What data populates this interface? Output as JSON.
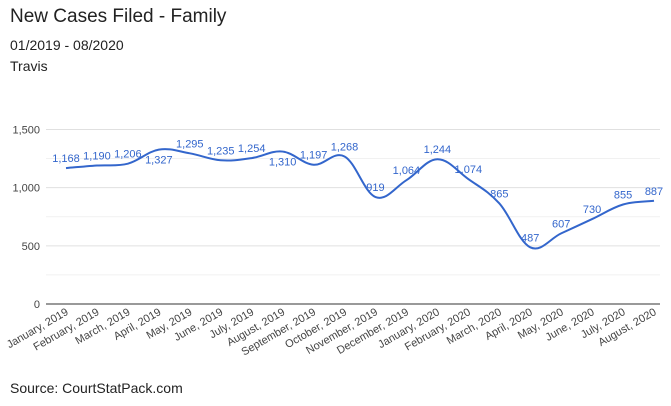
{
  "title": "New Cases Filed - Family",
  "subtitle": "01/2019 - 08/2020",
  "subtitle2": "Travis",
  "source": "Source: CourtStatPack.com",
  "colors": {
    "line": "#3366cc",
    "grid": "#e0e0e0",
    "axis": "#333333",
    "text": "#222222"
  },
  "chart_data": {
    "type": "line",
    "categories": [
      "January, 2019",
      "February, 2019",
      "March, 2019",
      "April, 2019",
      "May, 2019",
      "June, 2019",
      "July, 2019",
      "August, 2019",
      "September, 2019",
      "October, 2019",
      "November, 2019",
      "December, 2019",
      "January, 2020",
      "February, 2020",
      "March, 2020",
      "April, 2020",
      "May, 2020",
      "June, 2020",
      "July, 2020",
      "August, 2020"
    ],
    "values": [
      1168,
      1190,
      1206,
      1327,
      1295,
      1235,
      1254,
      1310,
      1197,
      1268,
      919,
      1064,
      1244,
      1074,
      865,
      487,
      607,
      730,
      855,
      887
    ],
    "labels": [
      "1,168",
      "1,190",
      "1,206",
      "1,327",
      "1,295",
      "1,235",
      "1,254",
      "1,310",
      "1,197",
      "1,268",
      "919",
      "1,064",
      "1,244",
      "1,074",
      "865",
      "487",
      "607",
      "730",
      "855",
      "887"
    ],
    "label_below": [
      false,
      false,
      false,
      true,
      false,
      false,
      false,
      true,
      false,
      false,
      false,
      false,
      false,
      false,
      false,
      false,
      false,
      false,
      false,
      false
    ],
    "yticks": [
      0,
      500,
      1000,
      1500
    ],
    "ytick_labels": [
      "0",
      "500",
      "1,000",
      "1,500"
    ],
    "ylim": [
      0,
      1650
    ],
    "xlabel": "",
    "ylabel": "",
    "legend": "none"
  }
}
